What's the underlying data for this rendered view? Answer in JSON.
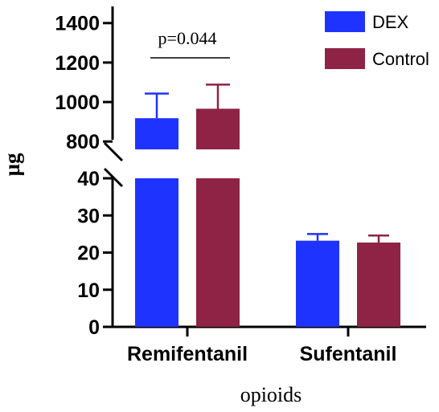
{
  "chart_data": {
    "type": "bar",
    "ylabel": "µg",
    "xlabel": "opioids",
    "categories": [
      "Remifentanil",
      "Sufentanil"
    ],
    "series": [
      {
        "name": "DEX",
        "color": "#1f33ff",
        "values": [
          918,
          23.2
        ],
        "error": [
          125,
          1.8
        ]
      },
      {
        "name": "Control",
        "color": "#8e2346",
        "values": [
          966,
          22.7
        ],
        "error": [
          122,
          1.9
        ]
      }
    ],
    "axis_break": true,
    "lower_segment": {
      "ylim": [
        0,
        40
      ],
      "ticks": [
        0,
        10,
        20,
        30,
        40
      ]
    },
    "upper_segment": {
      "ylim": [
        760,
        1460
      ],
      "ticks": [
        800,
        1000,
        1200,
        1400
      ]
    },
    "annotation": {
      "text": "p=0.044",
      "category": "Remifentanil"
    },
    "legend_position": "top-right",
    "grid": false
  }
}
